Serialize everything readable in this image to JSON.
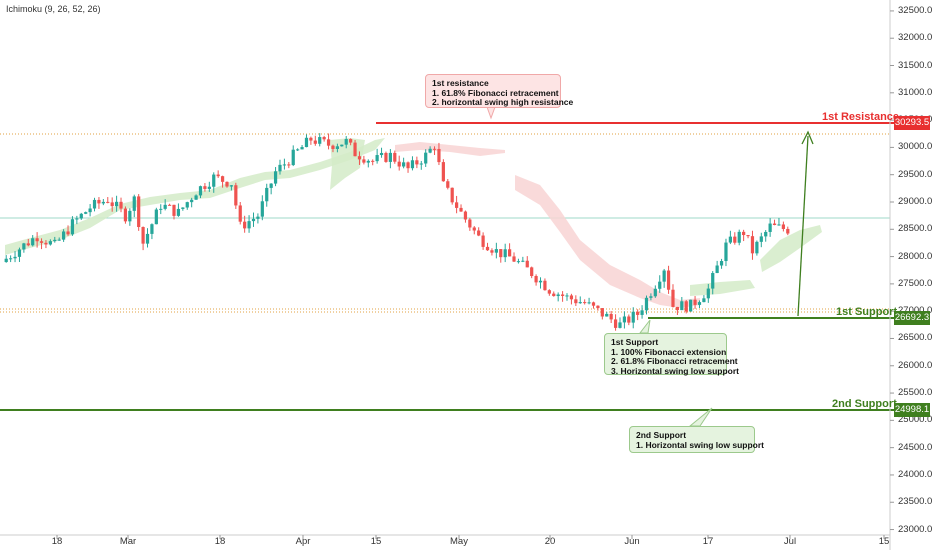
{
  "indicator": {
    "label": "Ichimoku (9, 26, 52, 26)"
  },
  "colors": {
    "up": "#26a69a",
    "down": "#ef5350",
    "resistance": "#e83030",
    "support": "#3f7f1f",
    "cloud_bull": "#d3ebc8",
    "cloud_bear": "#f8d3d3"
  },
  "levels": {
    "resistance1": {
      "label": "1st Resistance",
      "value": "30293.5"
    },
    "support1": {
      "label": "1st Support",
      "value": "26692.3"
    },
    "support2": {
      "label": "2nd Support",
      "value": "24998.1"
    }
  },
  "callouts": {
    "resistance": {
      "lines": [
        "1st resistance",
        "1. 61.8% Fibonacci retracement",
        "2. horizontal swing high resistance"
      ]
    },
    "support1": {
      "lines": [
        "1st Support",
        "1. 100% Fibonacci extension",
        "2. 61.8% Fibonacci retracement",
        "3. Horizontal swing low support"
      ]
    },
    "support2": {
      "lines": [
        "2nd Support",
        "1.  Horizontal swing low support"
      ]
    }
  },
  "y_axis": {
    "ticks": [
      "32500.0",
      "32000.0",
      "31500.0",
      "31000.0",
      "30500.0",
      "30000.0",
      "29500.0",
      "29000.0",
      "28500.0",
      "28000.0",
      "27500.0",
      "27000.0",
      "26500.0",
      "26000.0",
      "25500.0",
      "25000.0",
      "24500.0",
      "24000.0",
      "23500.0",
      "23000.0"
    ]
  },
  "x_axis": {
    "ticks": [
      "18",
      "Mar",
      "18",
      "Apr",
      "15",
      "May",
      "20",
      "Jun",
      "17",
      "Jul",
      "15"
    ]
  },
  "chart_data": {
    "type": "candlestick",
    "ylim": [
      22900,
      32700
    ],
    "price_key_points": [
      [
        0,
        27900
      ],
      [
        4,
        28150
      ],
      [
        8,
        28380
      ],
      [
        12,
        28200
      ],
      [
        16,
        28600
      ],
      [
        20,
        28900
      ],
      [
        24,
        29050
      ],
      [
        28,
        28750
      ],
      [
        30,
        29050
      ],
      [
        32,
        28250
      ],
      [
        36,
        28950
      ],
      [
        40,
        28800
      ],
      [
        44,
        29200
      ],
      [
        48,
        29450
      ],
      [
        52,
        29350
      ],
      [
        54,
        28550
      ],
      [
        58,
        28750
      ],
      [
        62,
        29550
      ],
      [
        66,
        29850
      ],
      [
        70,
        30150
      ],
      [
        74,
        30050
      ],
      [
        78,
        30100
      ],
      [
        80,
        29900
      ],
      [
        84,
        29750
      ],
      [
        88,
        29850
      ],
      [
        92,
        29600
      ],
      [
        96,
        29850
      ],
      [
        98,
        30050
      ],
      [
        100,
        29300
      ],
      [
        104,
        28800
      ],
      [
        108,
        28350
      ],
      [
        112,
        28100
      ],
      [
        116,
        27950
      ],
      [
        120,
        27700
      ],
      [
        124,
        27400
      ],
      [
        128,
        27250
      ],
      [
        132,
        27150
      ],
      [
        136,
        26950
      ],
      [
        140,
        26750
      ],
      [
        144,
        26950
      ],
      [
        148,
        27500
      ],
      [
        150,
        27800
      ],
      [
        152,
        27100
      ],
      [
        156,
        27100
      ],
      [
        160,
        27400
      ],
      [
        164,
        28200
      ],
      [
        168,
        28450
      ],
      [
        170,
        28100
      ],
      [
        174,
        28550
      ],
      [
        178,
        28500
      ]
    ],
    "candle_count": 178
  }
}
